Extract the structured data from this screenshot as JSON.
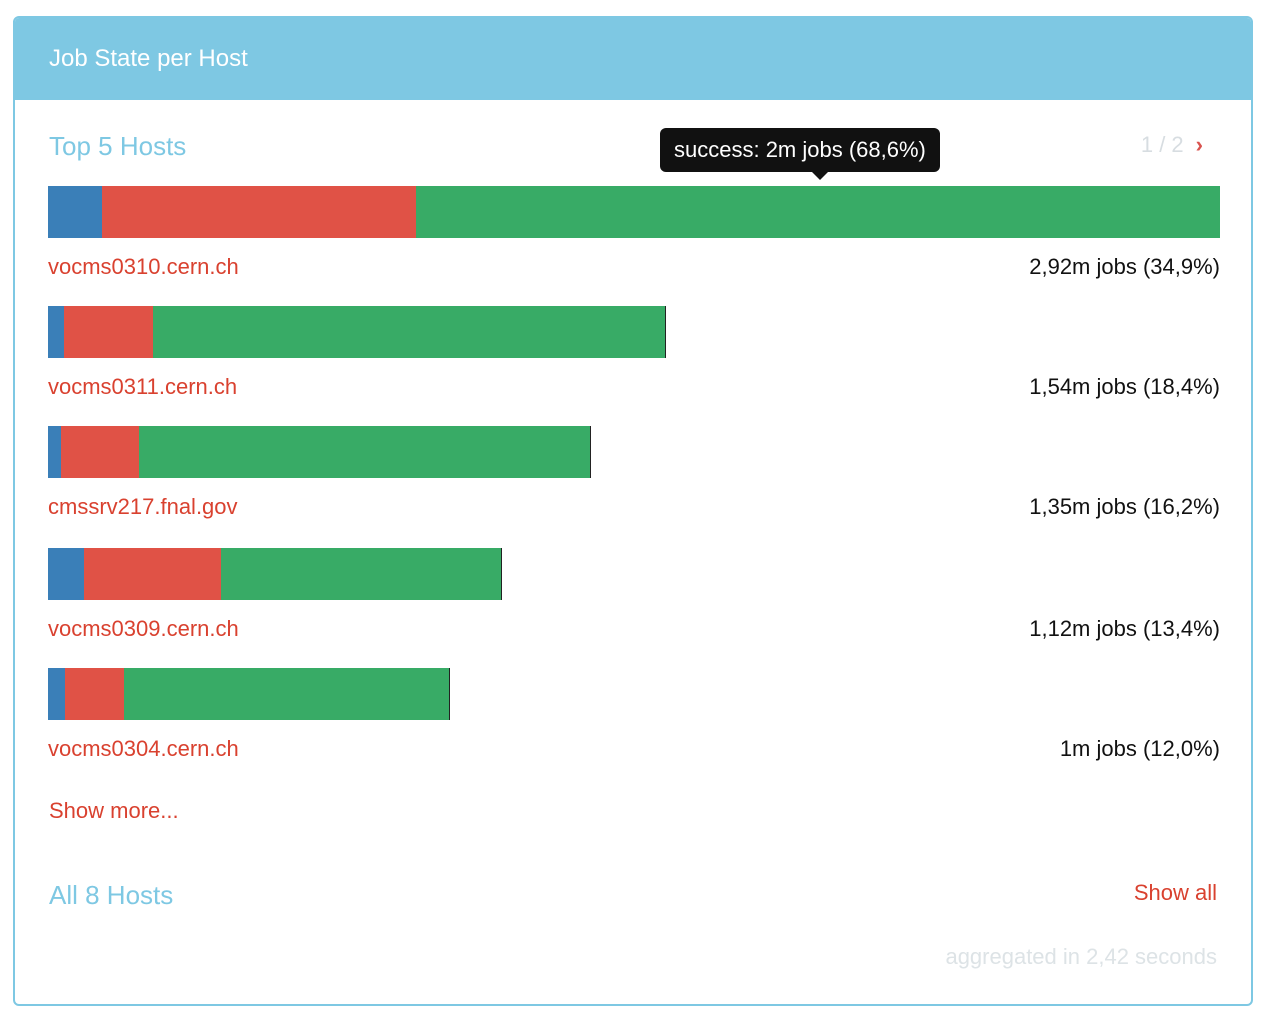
{
  "panel": {
    "title": "Job State per Host"
  },
  "top_section": {
    "title": "Top 5 Hosts",
    "pager": {
      "text": "1 / 2",
      "next_icon": "chevron-right-icon",
      "next_glyph": "›"
    }
  },
  "tooltip": {
    "text": "success: 2m jobs (68,6%)"
  },
  "colors": {
    "header": "#7ec8e3",
    "blue": "#3a7fb8",
    "red": "#e05246",
    "green": "#38ab66",
    "link": "#d9412f"
  },
  "hosts": [
    {
      "name": "vocms0310.cern.ch",
      "count": "2,92m jobs (34,9%)",
      "bar_fraction": 1.0,
      "segments": [
        0.046,
        0.268,
        0.686
      ]
    },
    {
      "name": "vocms0311.cern.ch",
      "count": "1,54m jobs (18,4%)",
      "bar_fraction": 0.527,
      "segments": [
        0.026,
        0.144,
        0.83
      ]
    },
    {
      "name": "cmssrv217.fnal.gov",
      "count": "1,35m jobs (16,2%)",
      "bar_fraction": 0.463,
      "segments": [
        0.024,
        0.144,
        0.832
      ]
    },
    {
      "name": "vocms0309.cern.ch",
      "count": "1,12m jobs (13,4%)",
      "bar_fraction": 0.387,
      "segments": [
        0.08,
        0.302,
        0.618
      ]
    },
    {
      "name": "vocms0304.cern.ch",
      "count": "1m jobs (12,0%)",
      "bar_fraction": 0.343,
      "segments": [
        0.042,
        0.147,
        0.811
      ]
    }
  ],
  "show_more": "Show more...",
  "all_section": {
    "title": "All 8 Hosts",
    "show_all": "Show all"
  },
  "footer": {
    "aggregated": "aggregated in 2,42 seconds"
  }
}
